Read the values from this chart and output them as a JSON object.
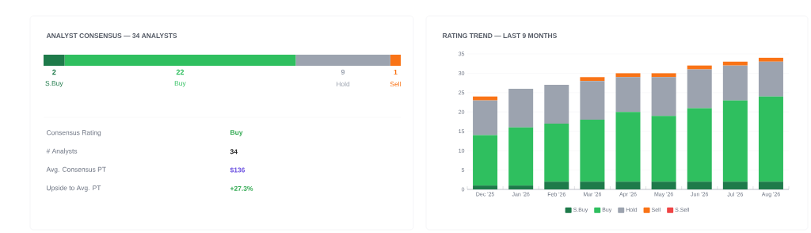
{
  "chart_data": [
    {
      "type": "bar",
      "title": "ANALYST CONSENSUS — 34 ANALYSTS",
      "orientation": "horizontal",
      "stacked": true,
      "categories": [
        null
      ],
      "tick_labels": false,
      "data_labels": true,
      "series": [
        {
          "name": "S.Buy",
          "color": "#1e7a4a",
          "values": [
            2
          ]
        },
        {
          "name": "Buy",
          "color": "#2fbf5f",
          "values": [
            22
          ]
        },
        {
          "name": "Hold",
          "color": "#9ca3af",
          "values": [
            9
          ]
        },
        {
          "name": "Sell",
          "color": "#f97316",
          "values": [
            1
          ]
        }
      ],
      "annotations": [
        "Consensus Rating",
        "Buy",
        "# Analysts",
        "34",
        "Avg. Consensus PT",
        "$136",
        "Upside to Avg. PT",
        "+27.3%"
      ]
    },
    {
      "type": "bar",
      "title": "RATING TREND — LAST 9 MONTHS",
      "stacked": true,
      "categories": [
        "Dec '25",
        "Jan '26",
        "Feb '26",
        "Mar '26",
        "Apr '26",
        "May '26",
        "Jun '26",
        "Jul '26",
        "Aug '26"
      ],
      "ylim": [
        0,
        35
      ],
      "yticks": [
        0,
        5,
        10,
        15,
        20,
        25,
        30,
        35
      ],
      "grid": "y",
      "legend": "bottom",
      "series": [
        {
          "name": "S.Buy",
          "color": "#1e7a4a",
          "values": [
            1,
            1,
            2,
            2,
            2,
            2,
            2,
            2,
            2
          ]
        },
        {
          "name": "Buy",
          "color": "#2fbf5f",
          "values": [
            13,
            15,
            15,
            16,
            18,
            17,
            19,
            21,
            22
          ]
        },
        {
          "name": "Hold",
          "color": "#9ca3af",
          "values": [
            9,
            10,
            10,
            10,
            9,
            10,
            10,
            9,
            9
          ]
        },
        {
          "name": "Sell",
          "color": "#f97316",
          "values": [
            1,
            0,
            0,
            1,
            1,
            1,
            1,
            1,
            1
          ]
        },
        {
          "name": "S.Sell",
          "color": "#ef4444",
          "values": [
            0,
            0,
            0,
            0,
            0,
            0,
            0,
            0,
            0
          ]
        }
      ]
    }
  ]
}
